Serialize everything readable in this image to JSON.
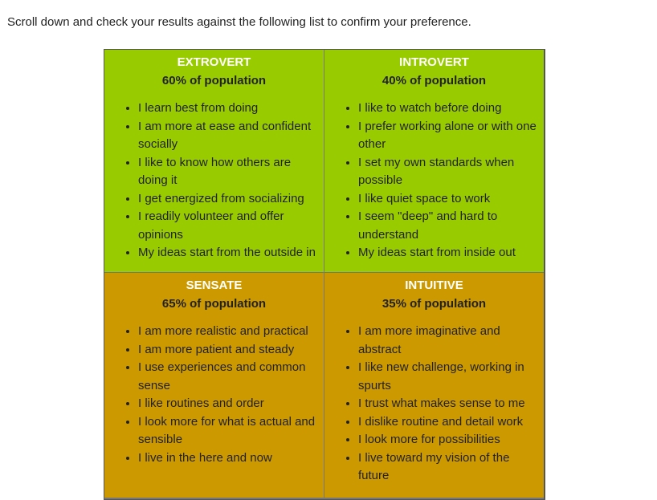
{
  "intro": "Scroll down and check your results against the following list to confirm your preference.",
  "table": {
    "cells": [
      {
        "title": "EXTROVERT",
        "population": "60% of population",
        "items": [
          "I learn best from doing",
          "I am more at ease and confident socially",
          "I like to know how others are doing it",
          "I get energized from socializing",
          "I readily volunteer and offer opinions",
          "My ideas start from the outside in"
        ]
      },
      {
        "title": "INTROVERT",
        "population": "40% of population",
        "items": [
          "I like to watch before doing",
          "I prefer working alone or with one other",
          "I set my own standards when possible",
          "I like quiet space to work",
          "I seem \"deep\" and hard to understand",
          "My ideas start from inside out"
        ]
      },
      {
        "title": "SENSATE",
        "population": "65% of population",
        "items": [
          "I am more realistic and practical",
          "I am more patient and steady",
          "I use experiences and common sense",
          "I like routines and order",
          "I look more for what is actual and sensible",
          "I live in the here and now"
        ]
      },
      {
        "title": "INTUITIVE",
        "population": "35% of population",
        "items": [
          "I am more imaginative and abstract",
          "I like new challenge, working in spurts",
          "I trust what makes sense to me",
          "I dislike routine and detail work",
          "I look more for possibilities",
          "I live toward my vision of the future"
        ]
      }
    ]
  }
}
